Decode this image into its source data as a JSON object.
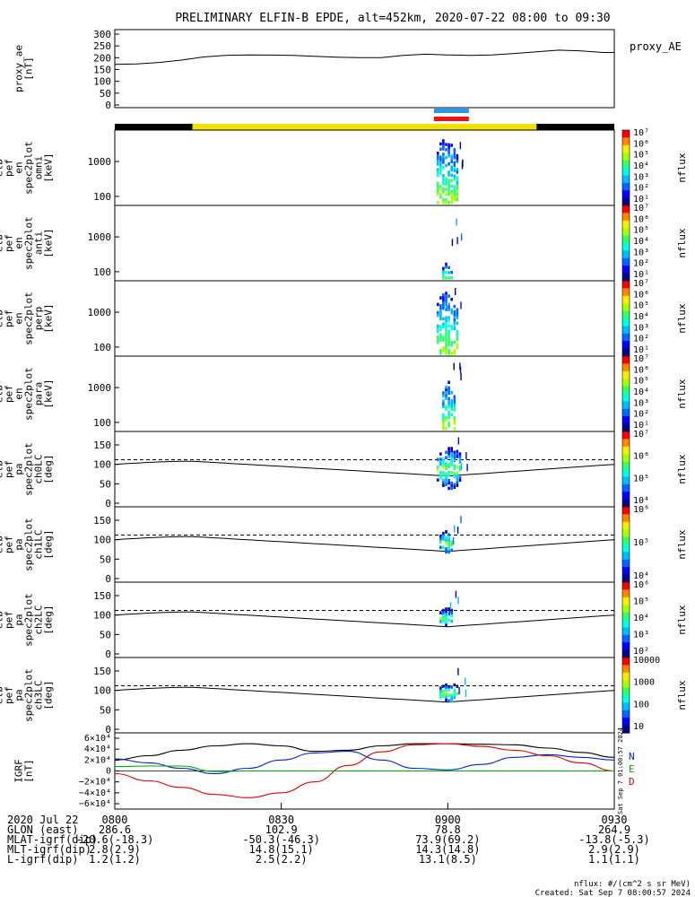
{
  "title": "PRELIMINARY ELFIN-B EPDE, alt=452km, 2020-07-22 08:00 to 09:30",
  "chart_data": [
    {
      "id": "proxy_ae",
      "type": "line",
      "ylabel": [
        "proxy_ae",
        "[nT]"
      ],
      "legend": "proxy_AE",
      "yticks": [
        "300",
        "250",
        "200",
        "150",
        "100",
        "50",
        "0"
      ],
      "ylim": [
        0,
        300
      ],
      "x_minutes": [
        0,
        4,
        8,
        12,
        16,
        20,
        24,
        28,
        32,
        36,
        40,
        44,
        48,
        52,
        56,
        60,
        64,
        68,
        72,
        76,
        80,
        84,
        88,
        90
      ],
      "values": [
        172,
        174,
        180,
        190,
        203,
        210,
        212,
        211,
        210,
        206,
        202,
        200,
        200,
        210,
        215,
        212,
        210,
        212,
        218,
        225,
        232,
        229,
        222,
        222
      ]
    },
    {
      "id": "science_zone_bar",
      "type": "bar",
      "segments": [
        {
          "start": 0,
          "end": 14,
          "color": "#000000"
        },
        {
          "start": 14,
          "end": 76,
          "color": "#f2e000"
        },
        {
          "start": 76,
          "end": 90,
          "color": "#000000"
        }
      ],
      "markers": [
        {
          "start": 57.5,
          "end": 63.8,
          "color": "#2299ee"
        },
        {
          "start": 57.5,
          "end": 63.8,
          "color": "#ee1111"
        }
      ]
    },
    {
      "id": "omni",
      "type": "heatmap",
      "ylabel": [
        "elb",
        "pef",
        "en",
        "spec2plot",
        "omni",
        "[keV]"
      ],
      "yticks": [
        "1000",
        "100"
      ],
      "colorbar": {
        "label": "nflux",
        "ticks": [
          "10⁷",
          "10⁶",
          "10⁵",
          "10⁴",
          "10³",
          "10²",
          "10¹"
        ]
      },
      "window": [
        58.0,
        62.0
      ],
      "energy_range": [
        62,
        5000
      ],
      "peak_energy": 100
    },
    {
      "id": "anti",
      "type": "heatmap",
      "ylabel": [
        "elb",
        "pef",
        "en",
        "spec2plot",
        "anti",
        "[keV]"
      ],
      "yticks": [
        "1000",
        "100"
      ],
      "colorbar": {
        "label": "nflux",
        "ticks": [
          "10⁷",
          "10⁶",
          "10⁵",
          "10⁴",
          "10³",
          "10²",
          "10¹"
        ]
      },
      "window": [
        59.0,
        61.0
      ],
      "energy_range": [
        62,
        200
      ],
      "peak_energy": 90
    },
    {
      "id": "perp",
      "type": "heatmap",
      "ylabel": [
        "elb",
        "pef",
        "en",
        "spec2plot",
        "perp",
        "[keV]"
      ],
      "yticks": [
        "1000",
        "100"
      ],
      "colorbar": {
        "label": "nflux",
        "ticks": [
          "10⁷",
          "10⁶",
          "10⁵",
          "10⁴",
          "10³",
          "10²",
          "10¹"
        ]
      },
      "window": [
        58.0,
        62.0
      ],
      "energy_range": [
        62,
        4000
      ],
      "peak_energy": 100
    },
    {
      "id": "para",
      "type": "heatmap",
      "ylabel": [
        "elb",
        "pef",
        "en",
        "spec2plot",
        "para",
        "[keV]"
      ],
      "yticks": [
        "1000",
        "100"
      ],
      "colorbar": {
        "label": "nflux",
        "ticks": [
          "10⁷",
          "10⁶",
          "10⁵",
          "10⁴",
          "10³",
          "10²",
          "10¹"
        ]
      },
      "window": [
        59.0,
        61.5
      ],
      "energy_range": [
        62,
        2000
      ],
      "peak_energy": 90
    },
    {
      "id": "ch0lc",
      "type": "heatmap",
      "ylabel": [
        "elb",
        "pef",
        "pa",
        "spec2plot",
        "ch0LC",
        "[deg]"
      ],
      "yticks": [
        "150",
        "100",
        "50",
        "0"
      ],
      "ylim": [
        0,
        180
      ],
      "colorbar": {
        "label": "nflux",
        "ticks": [
          "10⁷",
          "10⁶",
          "10⁵",
          "10⁴"
        ]
      },
      "window": [
        58.0,
        62.5
      ],
      "pa_center": 90,
      "pa_spread": 55
    },
    {
      "id": "ch1lc",
      "type": "heatmap",
      "ylabel": [
        "elb",
        "pef",
        "pa",
        "spec2plot",
        "ch1LC",
        "[deg]"
      ],
      "yticks": [
        "150",
        "100",
        "50",
        "0"
      ],
      "ylim": [
        0,
        180
      ],
      "colorbar": {
        "label": "nflux",
        "ticks": [
          "10⁶",
          "10⁵",
          "10⁴"
        ]
      },
      "window": [
        58.5,
        61.0
      ],
      "pa_center": 95,
      "pa_spread": 30
    },
    {
      "id": "ch2lc",
      "type": "heatmap",
      "ylabel": [
        "elb",
        "pef",
        "pa",
        "spec2plot",
        "ch2LC",
        "[deg]"
      ],
      "yticks": [
        "150",
        "100",
        "50",
        "0"
      ],
      "ylim": [
        0,
        180
      ],
      "colorbar": {
        "label": "nflux",
        "ticks": [
          "10⁶",
          "10⁵",
          "10⁴",
          "10³",
          "10²"
        ]
      },
      "window": [
        58.5,
        61.0
      ],
      "pa_center": 95,
      "pa_spread": 25
    },
    {
      "id": "ch3lc",
      "type": "heatmap",
      "ylabel": [
        "elb",
        "pef",
        "pa",
        "spec2plot",
        "ch3LC",
        "[deg]"
      ],
      "yticks": [
        "150",
        "100",
        "50",
        "0"
      ],
      "ylim": [
        0,
        180
      ],
      "colorbar": {
        "label": "nflux",
        "ticks": [
          "10000",
          "1000",
          "100",
          "10"
        ]
      },
      "window": [
        58.5,
        62.0
      ],
      "pa_center": 95,
      "pa_spread": 25
    },
    {
      "id": "igrf",
      "type": "line",
      "ylabel": [
        "IGRF",
        "[nT]"
      ],
      "yticks": [
        "6×10⁴",
        "4×10⁴",
        "2×10⁴",
        "0",
        "−2×10⁴",
        "−4×10⁴",
        "−6×10⁴"
      ],
      "ylim": [
        -60000,
        60000
      ],
      "legend": [
        "N",
        "E",
        "D"
      ],
      "side_text": "Sat Sep  7 01:00:57 2024",
      "x_minutes": [
        0,
        6,
        12,
        18,
        24,
        30,
        36,
        42,
        48,
        54,
        60,
        66,
        72,
        78,
        84,
        90
      ],
      "series": [
        {
          "name": "N",
          "color": "#000000",
          "values": [
            20000,
            28000,
            38000,
            46000,
            50000,
            46000,
            36000,
            38000,
            46000,
            50000,
            50000,
            49000,
            48000,
            42000,
            34000,
            25000
          ]
        },
        {
          "name": "E",
          "color": "#0022cc",
          "values": [
            22000,
            15000,
            5000,
            -5000,
            5000,
            20000,
            33000,
            36000,
            20000,
            5000,
            2000,
            12000,
            25000,
            30000,
            25000,
            20000
          ]
        },
        {
          "name": "D",
          "color": "#dd0000",
          "values": [
            -5000,
            -18000,
            -30000,
            -43000,
            -49000,
            -40000,
            -20000,
            10000,
            35000,
            48000,
            50000,
            45000,
            38000,
            28000,
            15000,
            0
          ]
        },
        {
          "name": "",
          "color": "#00aa00",
          "values": [
            8000,
            9000,
            9000,
            -1000,
            0,
            0,
            0,
            0,
            0,
            0,
            0,
            0,
            0,
            0,
            0,
            0
          ]
        }
      ]
    }
  ],
  "xaxis": {
    "ticks": [
      {
        "minute": 0,
        "label": "0800"
      },
      {
        "minute": 30,
        "label": "0830"
      },
      {
        "minute": 60,
        "label": "0900"
      },
      {
        "minute": 90,
        "label": "0930"
      }
    ],
    "rows": [
      {
        "label": "2020 Jul 22",
        "values": []
      },
      {
        "label": "GLON (east)",
        "values": [
          "286.6",
          "102.9",
          "78.8",
          "264.9"
        ]
      },
      {
        "label": "MLAT-igrf(dip)",
        "values": [
          "-20.6(-18.3)",
          "-50.3(-46.3)",
          "73.9(69.2)",
          "-13.8(-5.3)"
        ]
      },
      {
        "label": "MLT-igrf(dip)",
        "values": [
          "2.8(2.9)",
          "14.8(15.1)",
          "14.3(14.8)",
          "2.9(2.9)"
        ]
      },
      {
        "label": "L-igrf(dip)",
        "values": [
          "1.2(1.2)",
          "2.5(2.2)",
          "13.1(8.5)",
          "1.1(1.1)"
        ]
      }
    ]
  },
  "footer": {
    "units": "nflux: #/(cm^2 s sr MeV)",
    "created": "Created: Sat Sep  7 08:00:57 2024"
  }
}
